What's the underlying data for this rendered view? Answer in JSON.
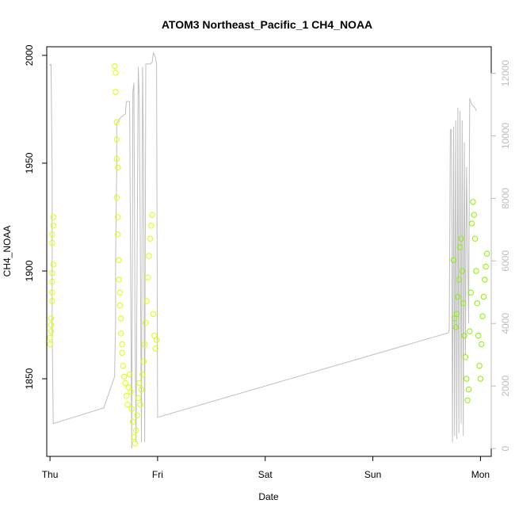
{
  "chart_data": {
    "type": "scatter",
    "title": "ATOM3 Northeast_Pacific_1 CH4_NOAA",
    "xlabel": "Date",
    "ylabel": "CH4_NOAA",
    "x_ticks": [
      "Thu",
      "Fri",
      "Sat",
      "Sun",
      "Mon"
    ],
    "xlim": [
      -0.03,
      4.1
    ],
    "ylim": [
      1814,
      2004
    ],
    "y_ticks": [
      1850,
      1900,
      1950,
      2000
    ],
    "y2lim": [
      -250,
      12850
    ],
    "y2_ticks": [
      0,
      2000,
      4000,
      6000,
      8000,
      10000,
      12000
    ],
    "grid": false,
    "legend": "none",
    "colors": {
      "early_points": "#dcff00",
      "late_points": "#8cf000",
      "altitude_line": "#bfbfbf"
    },
    "series": [
      {
        "values": [
          [
            0.0,
            1866
          ],
          [
            0.0,
            1869
          ],
          [
            0.01,
            1872
          ],
          [
            0.01,
            1875
          ],
          [
            0.01,
            1878
          ],
          [
            0.02,
            1886
          ],
          [
            0.02,
            1890
          ],
          [
            0.02,
            1895
          ],
          [
            0.02,
            1899
          ],
          [
            0.03,
            1903
          ],
          [
            0.02,
            1913
          ],
          [
            0.02,
            1917
          ],
          [
            0.03,
            1921
          ],
          [
            0.03,
            1925
          ],
          [
            0.6,
            1995
          ],
          [
            0.61,
            1992
          ],
          [
            0.61,
            1983
          ],
          [
            0.62,
            1969
          ],
          [
            0.62,
            1961
          ],
          [
            0.62,
            1952
          ],
          [
            0.63,
            1948
          ],
          [
            0.62,
            1934
          ],
          [
            0.63,
            1925
          ],
          [
            0.63,
            1917
          ],
          [
            0.64,
            1905
          ],
          [
            0.64,
            1896
          ],
          [
            0.65,
            1890
          ],
          [
            0.65,
            1884
          ],
          [
            0.66,
            1878
          ],
          [
            0.66,
            1871
          ],
          [
            0.67,
            1866
          ],
          [
            0.67,
            1862
          ],
          [
            0.68,
            1856
          ],
          [
            0.69,
            1851
          ],
          [
            0.7,
            1848
          ],
          [
            0.71,
            1842
          ],
          [
            0.72,
            1838
          ],
          [
            0.73,
            1846
          ],
          [
            0.74,
            1852
          ],
          [
            0.75,
            1844
          ],
          [
            0.76,
            1836
          ],
          [
            0.77,
            1830
          ],
          [
            0.78,
            1823
          ],
          [
            0.79,
            1820
          ],
          [
            0.8,
            1826
          ],
          [
            0.81,
            1833
          ],
          [
            0.82,
            1841
          ],
          [
            0.83,
            1848
          ],
          [
            0.84,
            1838
          ],
          [
            0.85,
            1845
          ],
          [
            0.86,
            1852
          ],
          [
            0.87,
            1858
          ],
          [
            0.88,
            1866
          ],
          [
            0.89,
            1876
          ],
          [
            0.9,
            1886
          ],
          [
            0.91,
            1897
          ],
          [
            0.92,
            1907
          ],
          [
            0.93,
            1915
          ],
          [
            0.94,
            1921
          ],
          [
            0.95,
            1926
          ],
          [
            0.96,
            1880
          ],
          [
            0.97,
            1870
          ],
          [
            0.98,
            1864
          ],
          [
            0.99,
            1868
          ]
        ]
      },
      {
        "values": [
          [
            3.75,
            1905
          ],
          [
            3.76,
            1878
          ],
          [
            3.77,
            1874
          ],
          [
            3.78,
            1880
          ],
          [
            3.79,
            1888
          ],
          [
            3.8,
            1896
          ],
          [
            3.81,
            1911
          ],
          [
            3.82,
            1915
          ],
          [
            3.83,
            1900
          ],
          [
            3.84,
            1885
          ],
          [
            3.85,
            1870
          ],
          [
            3.86,
            1860
          ],
          [
            3.87,
            1850
          ],
          [
            3.88,
            1840
          ],
          [
            3.89,
            1845
          ],
          [
            3.9,
            1872
          ],
          [
            3.91,
            1890
          ],
          [
            3.92,
            1922
          ],
          [
            3.93,
            1932
          ],
          [
            3.94,
            1926
          ],
          [
            3.95,
            1915
          ],
          [
            3.96,
            1900
          ],
          [
            3.97,
            1885
          ],
          [
            3.98,
            1870
          ],
          [
            3.99,
            1856
          ],
          [
            4.0,
            1850
          ],
          [
            4.01,
            1866
          ],
          [
            4.02,
            1879
          ],
          [
            4.03,
            1888
          ],
          [
            4.04,
            1896
          ],
          [
            4.05,
            1902
          ],
          [
            4.06,
            1908
          ]
        ]
      }
    ],
    "secondary_series": {
      "values": [
        [
          0.0,
          12300
        ],
        [
          0.0,
          12260
        ],
        [
          0.01,
          12280
        ],
        [
          0.02,
          9000
        ],
        [
          0.02,
          4000
        ],
        [
          0.03,
          800
        ],
        [
          0.5,
          1300
        ],
        [
          0.6,
          2300
        ],
        [
          0.61,
          4000
        ],
        [
          0.61,
          6000
        ],
        [
          0.62,
          9000
        ],
        [
          0.62,
          10400
        ],
        [
          0.64,
          10500
        ],
        [
          0.66,
          10600
        ],
        [
          0.68,
          10650
        ],
        [
          0.7,
          10700
        ],
        [
          0.71,
          11100
        ],
        [
          0.74,
          11100
        ],
        [
          0.75,
          5000
        ],
        [
          0.76,
          0
        ],
        [
          0.77,
          11400
        ],
        [
          0.78,
          11700
        ],
        [
          0.79,
          4000
        ],
        [
          0.8,
          200
        ],
        [
          0.82,
          12200
        ],
        [
          0.83,
          11200
        ],
        [
          0.84,
          6000
        ],
        [
          0.85,
          200
        ],
        [
          0.86,
          12200
        ],
        [
          0.87,
          9000
        ],
        [
          0.88,
          200
        ],
        [
          0.89,
          12300
        ],
        [
          0.9,
          12300
        ],
        [
          0.93,
          12300
        ],
        [
          0.95,
          12350
        ],
        [
          0.96,
          12650
        ],
        [
          0.97,
          12600
        ],
        [
          0.98,
          12500
        ],
        [
          0.99,
          12300
        ],
        [
          1.0,
          1000
        ],
        [
          3.7,
          3700
        ],
        [
          3.71,
          3800
        ],
        [
          3.72,
          10200
        ],
        [
          3.73,
          10200
        ],
        [
          3.74,
          200
        ],
        [
          3.75,
          10300
        ],
        [
          3.76,
          400
        ],
        [
          3.77,
          10500
        ],
        [
          3.78,
          300
        ],
        [
          3.79,
          10900
        ],
        [
          3.8,
          500
        ],
        [
          3.81,
          10800
        ],
        [
          3.82,
          800
        ],
        [
          3.83,
          10500
        ],
        [
          3.84,
          400
        ],
        [
          3.85,
          9800
        ],
        [
          3.86,
          3000
        ],
        [
          3.87,
          9000
        ],
        [
          3.89,
          4000
        ],
        [
          3.9,
          11200
        ],
        [
          3.92,
          11000
        ],
        [
          3.95,
          10900
        ],
        [
          3.96,
          10800
        ]
      ]
    }
  }
}
